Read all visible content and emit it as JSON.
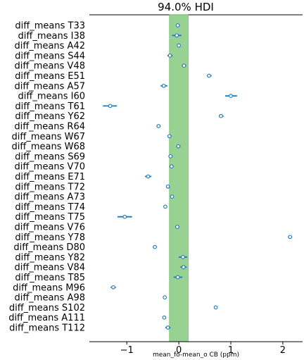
{
  "chart_data": {
    "type": "forest",
    "title": "94.0% HDI",
    "xlabel": "mean_fo-mean_o CB (ppm)",
    "xlim": [
      -1.72,
      2.38
    ],
    "xticks": [
      -1,
      0,
      1,
      2
    ],
    "xtick_labels": [
      "−1",
      "0",
      "1",
      "2"
    ],
    "hdi_band": {
      "lower": -0.18,
      "upper": 0.18,
      "color": "#98d292"
    },
    "point_color": "#1f77b4",
    "series": [
      {
        "label": "diff_means T33",
        "mean": -0.02,
        "hdi": [
          -0.05,
          0.02
        ]
      },
      {
        "label": "diff_means I38",
        "mean": -0.04,
        "hdi": [
          -0.13,
          0.05
        ]
      },
      {
        "label": "diff_means A42",
        "mean": 0.0,
        "hdi": [
          -0.03,
          0.03
        ]
      },
      {
        "label": "diff_means S44",
        "mean": -0.17,
        "hdi": [
          -0.22,
          -0.12
        ]
      },
      {
        "label": "diff_means V48",
        "mean": 0.1,
        "hdi": [
          0.06,
          0.14
        ]
      },
      {
        "label": "diff_means E51",
        "mean": 0.58,
        "hdi": [
          0.54,
          0.63
        ]
      },
      {
        "label": "diff_means A57",
        "mean": -0.29,
        "hdi": [
          -0.35,
          -0.22
        ]
      },
      {
        "label": "diff_means I60",
        "mean": 1.0,
        "hdi": [
          0.89,
          1.12
        ]
      },
      {
        "label": "diff_means T61",
        "mean": -1.32,
        "hdi": [
          -1.46,
          -1.19
        ]
      },
      {
        "label": "diff_means Y62",
        "mean": 0.81,
        "hdi": [
          0.77,
          0.86
        ]
      },
      {
        "label": "diff_means R64",
        "mean": -0.39,
        "hdi": [
          -0.43,
          -0.35
        ]
      },
      {
        "label": "diff_means W67",
        "mean": -0.18,
        "hdi": [
          -0.22,
          -0.14
        ]
      },
      {
        "label": "diff_means W68",
        "mean": -0.01,
        "hdi": [
          -0.05,
          0.03
        ]
      },
      {
        "label": "diff_means S69",
        "mean": -0.16,
        "hdi": [
          -0.2,
          -0.12
        ]
      },
      {
        "label": "diff_means V70",
        "mean": -0.14,
        "hdi": [
          -0.18,
          -0.1
        ]
      },
      {
        "label": "diff_means E71",
        "mean": -0.59,
        "hdi": [
          -0.65,
          -0.53
        ]
      },
      {
        "label": "diff_means T72",
        "mean": -0.21,
        "hdi": [
          -0.24,
          -0.18
        ]
      },
      {
        "label": "diff_means A73",
        "mean": -0.13,
        "hdi": [
          -0.16,
          -0.1
        ]
      },
      {
        "label": "diff_means T74",
        "mean": -0.26,
        "hdi": [
          -0.29,
          -0.23
        ]
      },
      {
        "label": "diff_means T75",
        "mean": -1.04,
        "hdi": [
          -1.18,
          -0.9
        ]
      },
      {
        "label": "diff_means V76",
        "mean": -0.03,
        "hdi": [
          -0.07,
          0.01
        ]
      },
      {
        "label": "diff_means Y78",
        "mean": 2.14,
        "hdi": [
          2.1,
          2.18
        ]
      },
      {
        "label": "diff_means D80",
        "mean": -0.46,
        "hdi": [
          -0.5,
          -0.42
        ]
      },
      {
        "label": "diff_means Y82",
        "mean": 0.08,
        "hdi": [
          0.0,
          0.16
        ]
      },
      {
        "label": "diff_means V84",
        "mean": 0.09,
        "hdi": [
          0.03,
          0.15
        ]
      },
      {
        "label": "diff_means T85",
        "mean": -0.02,
        "hdi": [
          -0.1,
          0.07
        ]
      },
      {
        "label": "diff_means M96",
        "mean": -1.26,
        "hdi": [
          -1.31,
          -1.21
        ]
      },
      {
        "label": "diff_means A98",
        "mean": -0.27,
        "hdi": [
          -0.3,
          -0.24
        ]
      },
      {
        "label": "diff_means S102",
        "mean": 0.71,
        "hdi": [
          0.68,
          0.74
        ]
      },
      {
        "label": "diff_means A111",
        "mean": -0.28,
        "hdi": [
          -0.31,
          -0.25
        ]
      },
      {
        "label": "diff_means T112",
        "mean": -0.21,
        "hdi": [
          -0.26,
          -0.16
        ]
      }
    ]
  }
}
